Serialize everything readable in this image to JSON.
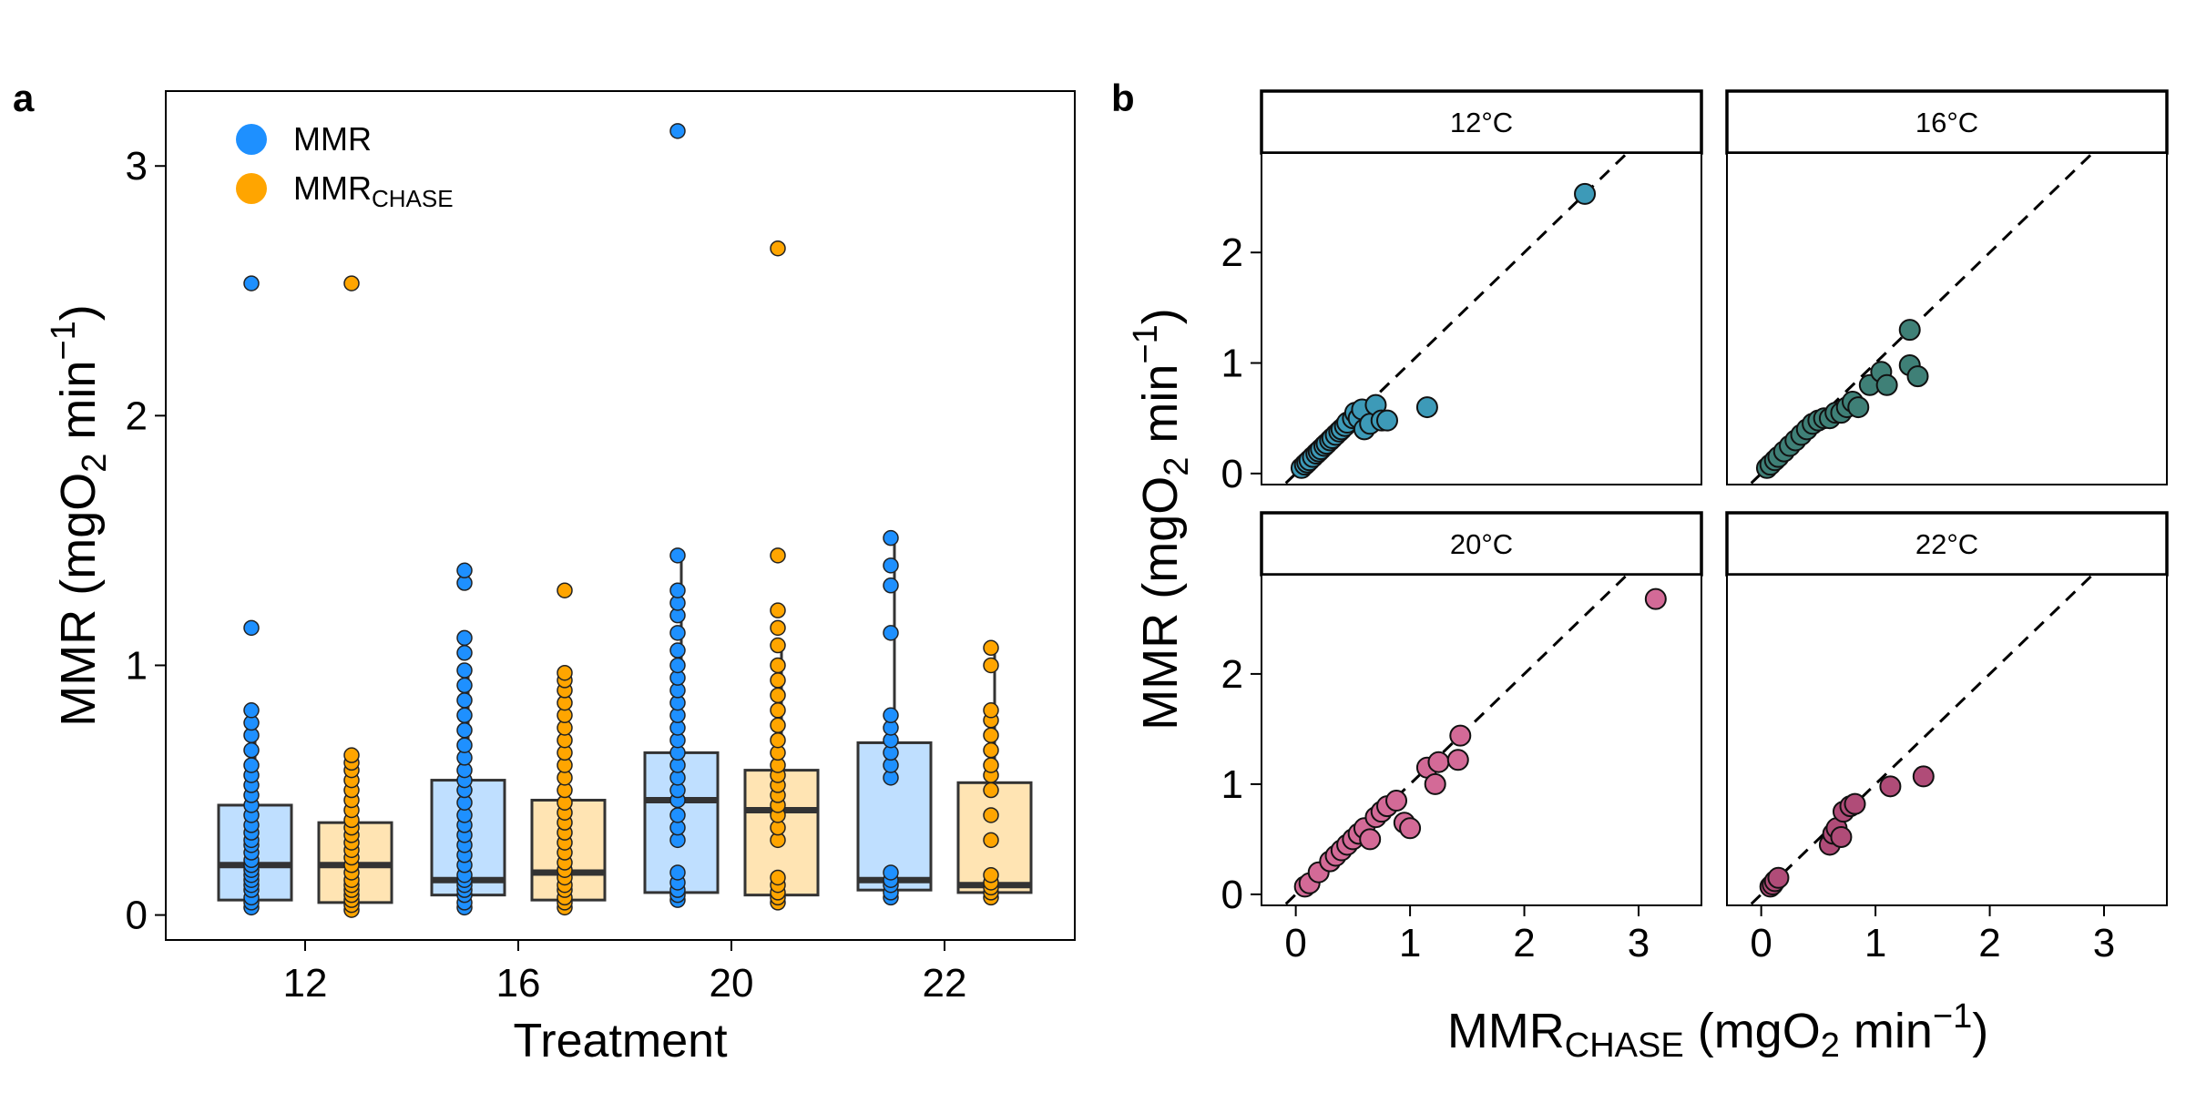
{
  "colors": {
    "mmr": "#1E90FF",
    "mmr_chase": "#FFA500",
    "mmr_box": "#BFDFFF",
    "chase_box": "#FFE4B3",
    "temp_12": "#3D9AB8",
    "temp_16": "#3F8077",
    "temp_20": "#D36A97",
    "temp_22": "#B04C78"
  },
  "chart_data": [
    {
      "type": "box",
      "panel_label": "a",
      "xlabel": "Treatment",
      "ylabel": {
        "main": "MMR (mgO",
        "sub": "2",
        "mid": " min",
        "sup": "−1",
        "end": ")"
      },
      "ylim": [
        -0.1,
        3.3
      ],
      "yticks": [
        0,
        1,
        2,
        3
      ],
      "categories": [
        "12",
        "16",
        "20",
        "22"
      ],
      "legend": {
        "position": "top-left",
        "items": [
          {
            "label": "MMR",
            "sub": "",
            "color_key": "mmr"
          },
          {
            "label": "MMR",
            "sub": "CHASE",
            "color_key": "mmr_chase"
          }
        ]
      },
      "series": [
        {
          "key": "mmr",
          "box_color_key": "mmr_box",
          "boxes": [
            {
              "min": 0.05,
              "q1": 0.06,
              "median": 0.2,
              "q3": 0.44,
              "max": 0.82
            },
            {
              "min": 0.03,
              "q1": 0.08,
              "median": 0.14,
              "q3": 0.54,
              "max": 1.0
            },
            {
              "min": 0.06,
              "q1": 0.09,
              "median": 0.46,
              "q3": 0.65,
              "max": 1.44
            },
            {
              "min": 0.07,
              "q1": 0.1,
              "median": 0.14,
              "q3": 0.69,
              "max": 1.51
            }
          ],
          "points": [
            [
              0.03,
              0.05,
              0.07,
              0.1,
              0.12,
              0.14,
              0.16,
              0.18,
              0.2,
              0.22,
              0.25,
              0.28,
              0.3,
              0.33,
              0.36,
              0.4,
              0.44,
              0.48,
              0.52,
              0.56,
              0.6,
              0.66,
              0.72,
              0.77,
              0.82,
              1.15,
              2.53
            ],
            [
              0.03,
              0.05,
              0.08,
              0.1,
              0.12,
              0.14,
              0.16,
              0.2,
              0.24,
              0.28,
              0.32,
              0.36,
              0.4,
              0.45,
              0.5,
              0.54,
              0.58,
              0.63,
              0.68,
              0.74,
              0.8,
              0.86,
              0.92,
              0.98,
              1.05,
              1.11,
              1.33,
              1.38
            ],
            [
              0.06,
              0.08,
              0.1,
              0.13,
              0.17,
              0.3,
              0.35,
              0.4,
              0.46,
              0.5,
              0.55,
              0.6,
              0.65,
              0.7,
              0.75,
              0.8,
              0.85,
              0.9,
              0.95,
              1.0,
              1.06,
              1.13,
              1.2,
              1.25,
              1.3,
              1.44,
              3.14
            ],
            [
              0.07,
              0.09,
              0.12,
              0.14,
              0.17,
              0.55,
              0.6,
              0.65,
              0.7,
              0.75,
              0.8,
              1.13,
              1.32,
              1.4,
              1.51
            ]
          ]
        },
        {
          "key": "mmr_chase",
          "box_color_key": "chase_box",
          "boxes": [
            {
              "min": 0.02,
              "q1": 0.05,
              "median": 0.2,
              "q3": 0.37,
              "max": 0.65
            },
            {
              "min": 0.03,
              "q1": 0.06,
              "median": 0.17,
              "q3": 0.46,
              "max": 0.96
            },
            {
              "min": 0.05,
              "q1": 0.08,
              "median": 0.42,
              "q3": 0.58,
              "max": 1.08
            },
            {
              "min": 0.07,
              "q1": 0.09,
              "median": 0.12,
              "q3": 0.53,
              "max": 1.07
            }
          ],
          "points": [
            [
              0.02,
              0.04,
              0.06,
              0.08,
              0.1,
              0.12,
              0.14,
              0.17,
              0.2,
              0.23,
              0.26,
              0.29,
              0.32,
              0.35,
              0.38,
              0.42,
              0.46,
              0.5,
              0.54,
              0.58,
              0.61,
              0.64,
              2.53
            ],
            [
              0.03,
              0.05,
              0.07,
              0.1,
              0.12,
              0.15,
              0.18,
              0.21,
              0.25,
              0.29,
              0.33,
              0.37,
              0.41,
              0.45,
              0.5,
              0.55,
              0.6,
              0.65,
              0.7,
              0.75,
              0.8,
              0.85,
              0.9,
              0.94,
              0.97,
              1.3
            ],
            [
              0.05,
              0.07,
              0.09,
              0.12,
              0.15,
              0.3,
              0.35,
              0.4,
              0.44,
              0.48,
              0.52,
              0.56,
              0.6,
              0.65,
              0.7,
              0.76,
              0.82,
              0.88,
              0.94,
              1.0,
              1.08,
              1.15,
              1.22,
              1.44,
              2.67
            ],
            [
              0.07,
              0.09,
              0.11,
              0.13,
              0.16,
              0.3,
              0.4,
              0.5,
              0.56,
              0.6,
              0.66,
              0.72,
              0.78,
              0.82,
              1.0,
              1.07
            ]
          ]
        }
      ]
    },
    {
      "type": "scatter",
      "panel_label": "b",
      "xlabel": {
        "main": "MMR",
        "sub": "CHASE",
        "mid": " (mgO",
        "sub2": "2",
        "mid2": " min",
        "sup": "−1",
        "end": ")"
      },
      "ylabel": {
        "main": "MMR (mgO",
        "sub": "2",
        "mid": " min",
        "sup": "−1",
        "end": ")"
      },
      "xlim": [
        -0.3,
        3.55
      ],
      "ylim": [
        -0.1,
        2.9
      ],
      "xticks": [
        0,
        1,
        2,
        3
      ],
      "yticks": [
        0,
        1,
        2
      ],
      "reference_line": "y = x (dashed)",
      "facets": [
        {
          "label": "12°C",
          "color_key": "temp_12",
          "points": [
            [
              0.05,
              0.05
            ],
            [
              0.08,
              0.08
            ],
            [
              0.1,
              0.1
            ],
            [
              0.12,
              0.12
            ],
            [
              0.15,
              0.15
            ],
            [
              0.18,
              0.18
            ],
            [
              0.2,
              0.2
            ],
            [
              0.22,
              0.22
            ],
            [
              0.25,
              0.25
            ],
            [
              0.27,
              0.27
            ],
            [
              0.3,
              0.3
            ],
            [
              0.32,
              0.32
            ],
            [
              0.35,
              0.35
            ],
            [
              0.38,
              0.38
            ],
            [
              0.4,
              0.4
            ],
            [
              0.43,
              0.43
            ],
            [
              0.45,
              0.46
            ],
            [
              0.5,
              0.5
            ],
            [
              0.52,
              0.55
            ],
            [
              0.55,
              0.5
            ],
            [
              0.58,
              0.58
            ],
            [
              0.6,
              0.4
            ],
            [
              0.65,
              0.45
            ],
            [
              0.7,
              0.62
            ],
            [
              0.75,
              0.48
            ],
            [
              0.8,
              0.48
            ],
            [
              1.15,
              0.6
            ],
            [
              2.53,
              2.53
            ]
          ]
        },
        {
          "label": "16°C",
          "color_key": "temp_16",
          "points": [
            [
              0.05,
              0.05
            ],
            [
              0.08,
              0.08
            ],
            [
              0.12,
              0.12
            ],
            [
              0.15,
              0.15
            ],
            [
              0.2,
              0.2
            ],
            [
              0.25,
              0.25
            ],
            [
              0.3,
              0.3
            ],
            [
              0.35,
              0.35
            ],
            [
              0.4,
              0.4
            ],
            [
              0.45,
              0.45
            ],
            [
              0.5,
              0.48
            ],
            [
              0.55,
              0.5
            ],
            [
              0.6,
              0.5
            ],
            [
              0.65,
              0.55
            ],
            [
              0.7,
              0.55
            ],
            [
              0.75,
              0.6
            ],
            [
              0.8,
              0.65
            ],
            [
              0.85,
              0.6
            ],
            [
              0.95,
              0.8
            ],
            [
              1.05,
              0.92
            ],
            [
              1.1,
              0.8
            ],
            [
              1.3,
              0.98
            ],
            [
              1.37,
              0.88
            ],
            [
              1.3,
              1.3
            ]
          ]
        },
        {
          "label": "20°C",
          "color_key": "temp_20",
          "points": [
            [
              0.08,
              0.07
            ],
            [
              0.12,
              0.1
            ],
            [
              0.2,
              0.2
            ],
            [
              0.3,
              0.3
            ],
            [
              0.35,
              0.35
            ],
            [
              0.4,
              0.4
            ],
            [
              0.45,
              0.45
            ],
            [
              0.5,
              0.5
            ],
            [
              0.55,
              0.55
            ],
            [
              0.6,
              0.6
            ],
            [
              0.65,
              0.5
            ],
            [
              0.7,
              0.7
            ],
            [
              0.75,
              0.75
            ],
            [
              0.8,
              0.8
            ],
            [
              0.88,
              0.85
            ],
            [
              0.95,
              0.65
            ],
            [
              1.0,
              0.6
            ],
            [
              1.15,
              1.15
            ],
            [
              1.25,
              1.2
            ],
            [
              1.42,
              1.22
            ],
            [
              1.44,
              1.44
            ],
            [
              1.22,
              1.0
            ],
            [
              3.15,
              2.68
            ]
          ]
        },
        {
          "label": "22°C",
          "color_key": "temp_22",
          "points": [
            [
              0.08,
              0.07
            ],
            [
              0.1,
              0.09
            ],
            [
              0.12,
              0.12
            ],
            [
              0.15,
              0.15
            ],
            [
              0.6,
              0.45
            ],
            [
              0.63,
              0.55
            ],
            [
              0.66,
              0.6
            ],
            [
              0.7,
              0.52
            ],
            [
              0.72,
              0.75
            ],
            [
              0.78,
              0.8
            ],
            [
              0.82,
              0.82
            ],
            [
              1.13,
              0.98
            ],
            [
              1.42,
              1.07
            ]
          ]
        }
      ]
    }
  ]
}
